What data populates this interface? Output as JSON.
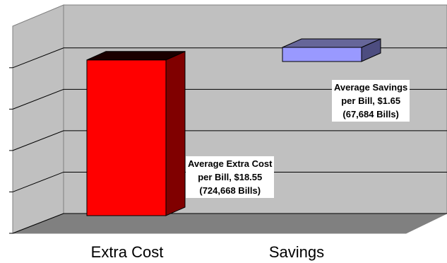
{
  "chart_data": {
    "type": "bar",
    "style": "3d-column",
    "categories": [
      "Extra Cost",
      "Savings"
    ],
    "values": [
      18.55,
      1.65
    ],
    "ylim": [
      0,
      20
    ],
    "grid": true,
    "colors": {
      "wall": "#c0c0c0",
      "floor": "#808080",
      "gridline": "#000000",
      "bars": [
        "#ff0000",
        "#9999ff"
      ],
      "bar_sides": [
        "#800000",
        "#4d4d80"
      ],
      "bar_tops": [
        "#1a0000",
        "#666699"
      ]
    },
    "data_labels": [
      {
        "line1": "Average Extra Cost",
        "line2": "per Bill, $18.55",
        "line3": "(724,668 Bills)"
      },
      {
        "line1": "Average Savings",
        "line2": "per Bill, $1.65",
        "line3": "(67,684 Bills)"
      }
    ]
  }
}
